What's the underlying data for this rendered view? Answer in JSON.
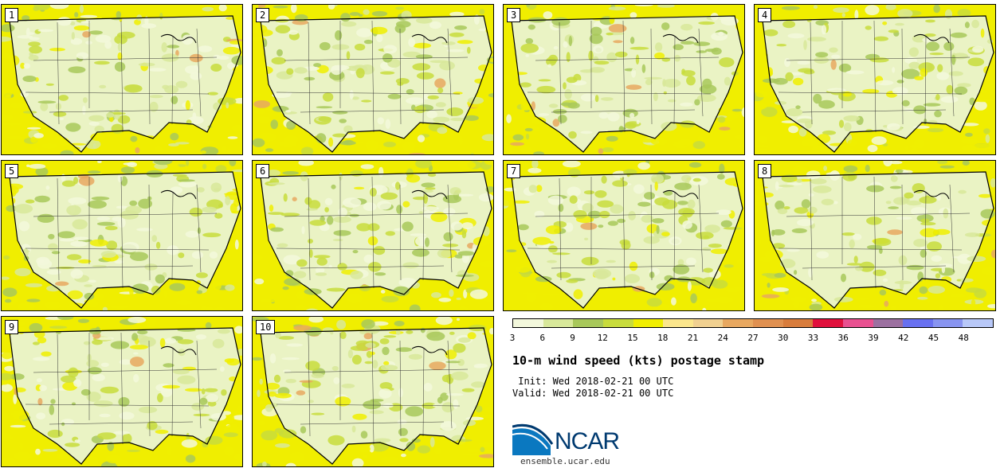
{
  "panels": [
    {
      "label": "1"
    },
    {
      "label": "2"
    },
    {
      "label": "3"
    },
    {
      "label": "4"
    },
    {
      "label": "5"
    },
    {
      "label": "6"
    },
    {
      "label": "7"
    },
    {
      "label": "8"
    },
    {
      "label": "9"
    },
    {
      "label": "10"
    }
  ],
  "colorbar": {
    "colors": [
      "#f3f8dc",
      "#d8e89a",
      "#a8c85a",
      "#c8dc3c",
      "#f0ee00",
      "#fbe68c",
      "#f0d090",
      "#e8a860",
      "#e09050",
      "#d87c3c",
      "#e0103c",
      "#e85090",
      "#9c70a0",
      "#6870f0",
      "#8894f0",
      "#b8c8f8"
    ],
    "ticks": [
      "3",
      "6",
      "9",
      "12",
      "15",
      "18",
      "21",
      "24",
      "27",
      "30",
      "33",
      "36",
      "39",
      "42",
      "45",
      "48"
    ]
  },
  "title": "10-m wind speed (kts) postage stamp",
  "init": " Init: Wed 2018-02-21 00 UTC",
  "valid": "Valid: Wed 2018-02-21 00 UTC",
  "logo": {
    "text": "NCAR"
  },
  "site": "ensemble.ucar.edu"
}
